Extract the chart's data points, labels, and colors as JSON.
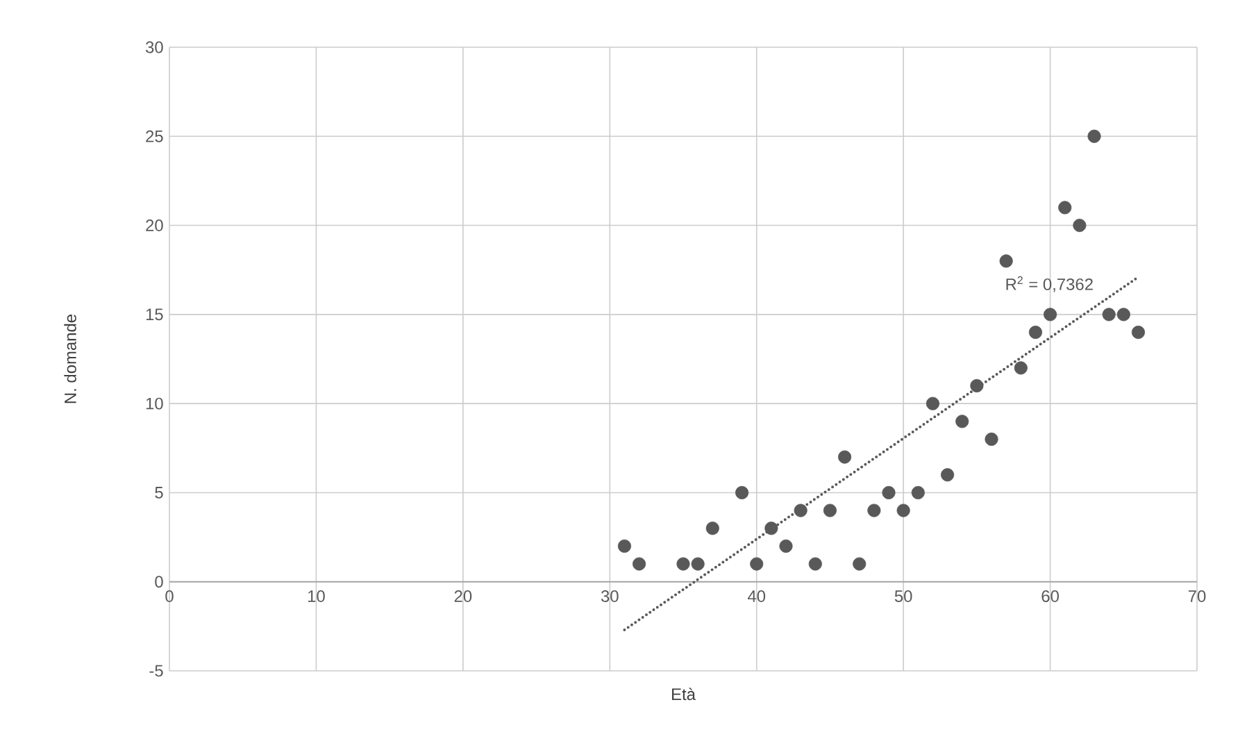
{
  "chart_data": {
    "type": "scatter",
    "xlabel": "Età",
    "ylabel": "N. domande",
    "xlim": [
      0,
      70
    ],
    "ylim": [
      -5,
      30
    ],
    "xticks": [
      0,
      10,
      20,
      30,
      40,
      50,
      60,
      70
    ],
    "yticks": [
      -5,
      0,
      5,
      10,
      15,
      20,
      25,
      30
    ],
    "grid": true,
    "annotations": [
      "R$^{2}$ = 0,7362"
    ],
    "series": [
      {
        "color": "#595959",
        "marker": "circle",
        "x": [
          31,
          32,
          35,
          36,
          37,
          39,
          40,
          41,
          42,
          43,
          44,
          45,
          46,
          47,
          48,
          49,
          50,
          51,
          52,
          53,
          54,
          55,
          56,
          57,
          58,
          59,
          60,
          61,
          62,
          63,
          64,
          65,
          66
        ],
        "values": [
          2,
          1,
          1,
          1,
          3,
          5,
          1,
          3,
          2,
          4,
          1,
          4,
          7,
          1,
          4,
          5,
          4,
          5,
          10,
          6,
          9,
          11,
          8,
          18,
          12,
          14,
          15,
          21,
          20,
          25,
          15,
          15,
          14
        ]
      },
      {
        "type": "line",
        "color": "#595959",
        "marker": "none",
        "line_style": "dotted",
        "x": [
          31,
          66
        ],
        "values": [
          -2.7,
          17.1
        ]
      }
    ]
  }
}
